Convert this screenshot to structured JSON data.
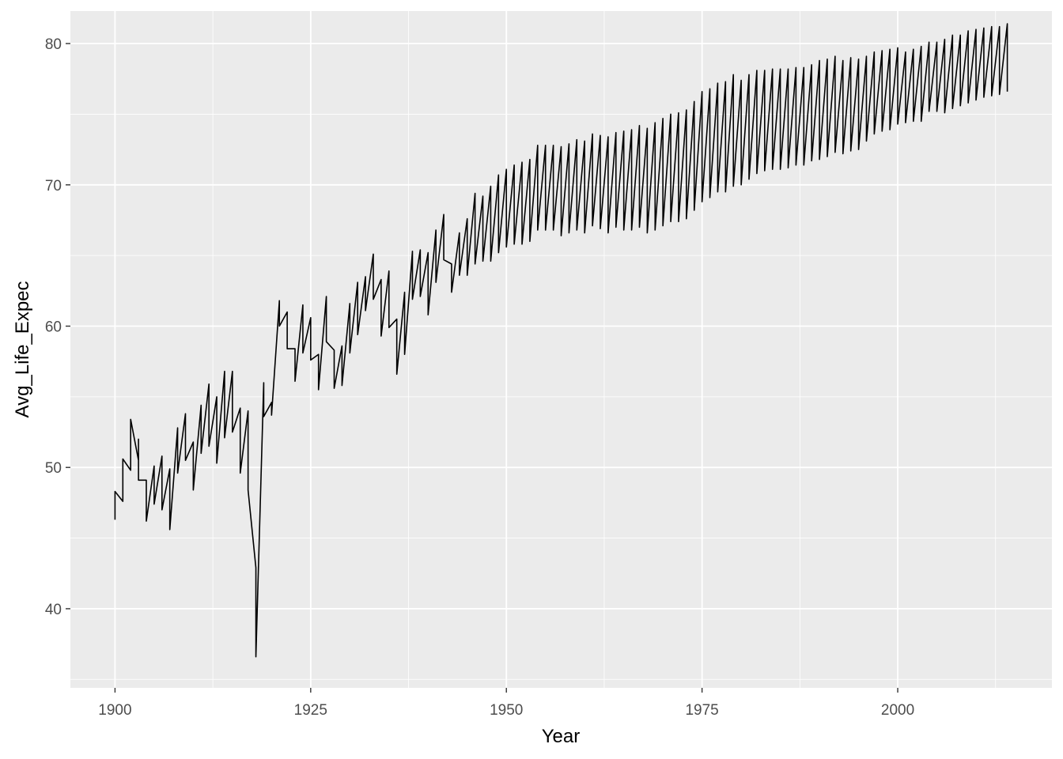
{
  "chart_data": {
    "type": "line",
    "title": "",
    "xlabel": "Year",
    "ylabel": "Avg_Life_Expec",
    "xlim": [
      1894.3,
      2019.7
    ],
    "ylim": [
      34.4,
      82.3
    ],
    "x_ticks": [
      1900,
      1925,
      1950,
      1975,
      2000
    ],
    "y_ticks": [
      40,
      50,
      60,
      70,
      80
    ],
    "grid": true,
    "legend": "none",
    "colors": {
      "panel_bg": "#ebebeb",
      "grid_major": "#ffffff",
      "line": "#000000"
    },
    "series": [
      {
        "points": [
          [
            1900,
            46.3
          ],
          [
            1900,
            48.3
          ],
          [
            1901,
            47.6
          ],
          [
            1901,
            50.6
          ],
          [
            1902,
            49.8
          ],
          [
            1902,
            53.4
          ],
          [
            1903,
            50.5
          ],
          [
            1903,
            52.0
          ],
          [
            1903,
            49.1
          ],
          [
            1904,
            49.1
          ],
          [
            1904,
            46.2
          ],
          [
            1905,
            50.1
          ],
          [
            1905,
            47.4
          ],
          [
            1906,
            50.8
          ],
          [
            1906,
            47.0
          ],
          [
            1907,
            49.9
          ],
          [
            1907,
            45.6
          ],
          [
            1908,
            52.8
          ],
          [
            1908,
            49.6
          ],
          [
            1909,
            53.8
          ],
          [
            1909,
            50.5
          ],
          [
            1910,
            51.8
          ],
          [
            1910,
            48.4
          ],
          [
            1911,
            54.4
          ],
          [
            1911,
            51.0
          ],
          [
            1912,
            55.9
          ],
          [
            1912,
            51.5
          ],
          [
            1913,
            55.0
          ],
          [
            1913,
            50.3
          ],
          [
            1914,
            56.8
          ],
          [
            1914,
            52.1
          ],
          [
            1915,
            56.8
          ],
          [
            1915,
            52.5
          ],
          [
            1916,
            54.2
          ],
          [
            1916,
            49.6
          ],
          [
            1917,
            54.0
          ],
          [
            1917,
            48.4
          ],
          [
            1918,
            42.9
          ],
          [
            1918,
            36.6
          ],
          [
            1919,
            56.0
          ],
          [
            1919,
            53.6
          ],
          [
            1920,
            54.6
          ],
          [
            1920,
            53.7
          ],
          [
            1921,
            61.8
          ],
          [
            1921,
            60.0
          ],
          [
            1922,
            61.0
          ],
          [
            1922,
            58.4
          ],
          [
            1923,
            58.4
          ],
          [
            1923,
            56.1
          ],
          [
            1924,
            61.5
          ],
          [
            1924,
            58.1
          ],
          [
            1925,
            60.6
          ],
          [
            1925,
            57.6
          ],
          [
            1926,
            58.0
          ],
          [
            1926,
            55.5
          ],
          [
            1927,
            62.1
          ],
          [
            1927,
            58.9
          ],
          [
            1928,
            58.3
          ],
          [
            1928,
            55.6
          ],
          [
            1929,
            58.6
          ],
          [
            1929,
            55.8
          ],
          [
            1930,
            61.6
          ],
          [
            1930,
            58.1
          ],
          [
            1931,
            63.1
          ],
          [
            1931,
            59.4
          ],
          [
            1932,
            63.5
          ],
          [
            1932,
            61.1
          ],
          [
            1933,
            65.1
          ],
          [
            1933,
            61.9
          ],
          [
            1934,
            63.3
          ],
          [
            1934,
            59.3
          ],
          [
            1935,
            63.9
          ],
          [
            1935,
            59.9
          ],
          [
            1936,
            60.5
          ],
          [
            1936,
            56.6
          ],
          [
            1937,
            62.4
          ],
          [
            1937,
            58.0
          ],
          [
            1938,
            65.3
          ],
          [
            1938,
            61.9
          ],
          [
            1939,
            65.4
          ],
          [
            1939,
            62.1
          ],
          [
            1940,
            65.2
          ],
          [
            1940,
            60.8
          ],
          [
            1941,
            66.8
          ],
          [
            1941,
            63.1
          ],
          [
            1942,
            67.9
          ],
          [
            1942,
            64.7
          ],
          [
            1943,
            64.4
          ],
          [
            1943,
            62.4
          ],
          [
            1944,
            66.6
          ],
          [
            1944,
            63.6
          ],
          [
            1945,
            67.6
          ],
          [
            1945,
            63.6
          ],
          [
            1946,
            69.4
          ],
          [
            1946,
            64.4
          ],
          [
            1947,
            69.2
          ],
          [
            1947,
            64.6
          ],
          [
            1948,
            69.9
          ],
          [
            1948,
            64.6
          ],
          [
            1949,
            70.7
          ],
          [
            1949,
            65.2
          ],
          [
            1950,
            71.1
          ],
          [
            1950,
            65.6
          ],
          [
            1951,
            71.4
          ],
          [
            1951,
            65.8
          ],
          [
            1952,
            71.6
          ],
          [
            1952,
            65.8
          ],
          [
            1953,
            71.8
          ],
          [
            1953,
            66.0
          ],
          [
            1954,
            72.8
          ],
          [
            1954,
            66.8
          ],
          [
            1955,
            72.8
          ],
          [
            1955,
            66.8
          ],
          [
            1956,
            72.8
          ],
          [
            1956,
            66.8
          ],
          [
            1957,
            72.7
          ],
          [
            1957,
            66.4
          ],
          [
            1958,
            72.9
          ],
          [
            1958,
            66.6
          ],
          [
            1959,
            73.2
          ],
          [
            1959,
            66.8
          ],
          [
            1960,
            73.1
          ],
          [
            1960,
            66.6
          ],
          [
            1961,
            73.6
          ],
          [
            1961,
            67.1
          ],
          [
            1962,
            73.5
          ],
          [
            1962,
            66.9
          ],
          [
            1963,
            73.4
          ],
          [
            1963,
            66.6
          ],
          [
            1964,
            73.7
          ],
          [
            1964,
            67.0
          ],
          [
            1965,
            73.8
          ],
          [
            1965,
            66.8
          ],
          [
            1966,
            73.9
          ],
          [
            1966,
            66.8
          ],
          [
            1967,
            74.2
          ],
          [
            1967,
            67.0
          ],
          [
            1968,
            74.0
          ],
          [
            1968,
            66.6
          ],
          [
            1969,
            74.4
          ],
          [
            1969,
            66.8
          ],
          [
            1970,
            74.7
          ],
          [
            1970,
            67.1
          ],
          [
            1971,
            75.0
          ],
          [
            1971,
            67.4
          ],
          [
            1972,
            75.1
          ],
          [
            1972,
            67.4
          ],
          [
            1973,
            75.3
          ],
          [
            1973,
            67.6
          ],
          [
            1974,
            75.9
          ],
          [
            1974,
            68.2
          ],
          [
            1975,
            76.6
          ],
          [
            1975,
            68.8
          ],
          [
            1976,
            76.8
          ],
          [
            1976,
            69.1
          ],
          [
            1977,
            77.2
          ],
          [
            1977,
            69.5
          ],
          [
            1978,
            77.3
          ],
          [
            1978,
            69.5
          ],
          [
            1979,
            77.8
          ],
          [
            1979,
            69.9
          ],
          [
            1980,
            77.4
          ],
          [
            1980,
            70.0
          ],
          [
            1981,
            77.8
          ],
          [
            1981,
            70.4
          ],
          [
            1982,
            78.1
          ],
          [
            1982,
            70.8
          ],
          [
            1983,
            78.1
          ],
          [
            1983,
            71.0
          ],
          [
            1984,
            78.2
          ],
          [
            1984,
            71.1
          ],
          [
            1985,
            78.2
          ],
          [
            1985,
            71.1
          ],
          [
            1986,
            78.2
          ],
          [
            1986,
            71.2
          ],
          [
            1987,
            78.3
          ],
          [
            1987,
            71.4
          ],
          [
            1988,
            78.3
          ],
          [
            1988,
            71.4
          ],
          [
            1989,
            78.5
          ],
          [
            1989,
            71.7
          ],
          [
            1990,
            78.8
          ],
          [
            1990,
            71.8
          ],
          [
            1991,
            78.9
          ],
          [
            1991,
            72.0
          ],
          [
            1992,
            79.1
          ],
          [
            1992,
            72.3
          ],
          [
            1993,
            78.8
          ],
          [
            1993,
            72.2
          ],
          [
            1994,
            79.0
          ],
          [
            1994,
            72.4
          ],
          [
            1995,
            78.9
          ],
          [
            1995,
            72.5
          ],
          [
            1996,
            79.1
          ],
          [
            1996,
            73.1
          ],
          [
            1997,
            79.4
          ],
          [
            1997,
            73.6
          ],
          [
            1998,
            79.5
          ],
          [
            1998,
            73.8
          ],
          [
            1999,
            79.6
          ],
          [
            1999,
            73.9
          ],
          [
            2000,
            79.7
          ],
          [
            2000,
            74.3
          ],
          [
            2001,
            79.4
          ],
          [
            2001,
            74.4
          ],
          [
            2002,
            79.6
          ],
          [
            2002,
            74.5
          ],
          [
            2003,
            79.8
          ],
          [
            2003,
            74.5
          ],
          [
            2004,
            80.1
          ],
          [
            2004,
            75.2
          ],
          [
            2005,
            80.1
          ],
          [
            2005,
            75.2
          ],
          [
            2006,
            80.3
          ],
          [
            2006,
            75.1
          ],
          [
            2007,
            80.6
          ],
          [
            2007,
            75.4
          ],
          [
            2008,
            80.6
          ],
          [
            2008,
            75.6
          ],
          [
            2009,
            80.9
          ],
          [
            2009,
            75.8
          ],
          [
            2010,
            81.0
          ],
          [
            2010,
            76.0
          ],
          [
            2011,
            81.1
          ],
          [
            2011,
            76.2
          ],
          [
            2012,
            81.2
          ],
          [
            2012,
            76.3
          ],
          [
            2013,
            81.2
          ],
          [
            2013,
            76.4
          ],
          [
            2014,
            81.4
          ],
          [
            2014,
            76.6
          ]
        ]
      }
    ]
  }
}
